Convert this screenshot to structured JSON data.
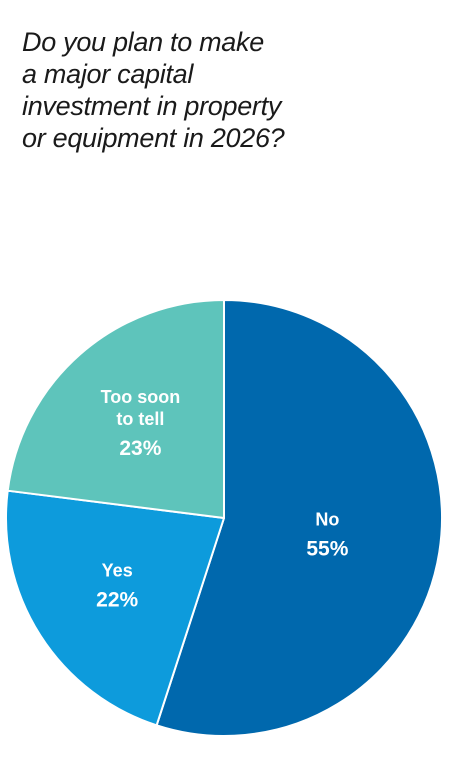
{
  "question": {
    "lines": [
      "Do you plan to make",
      "a major capital",
      "investment in property",
      "or equipment in 2026?"
    ]
  },
  "chart_data": {
    "type": "pie",
    "title": "Do you plan to make a major capital investment in property or equipment in 2026?",
    "slices": [
      {
        "label": "No",
        "value": 55,
        "display": "55%",
        "color": "#0068ad"
      },
      {
        "label": "Yes",
        "value": 22,
        "display": "22%",
        "color": "#0d9bdc"
      },
      {
        "label_lines": [
          "Too soon",
          "to tell"
        ],
        "label": "Too soon to tell",
        "value": 23,
        "display": "23%",
        "color": "#5ec4bb"
      }
    ],
    "start_angle": "12 o'clock",
    "direction": "clockwise",
    "slice_border_color": "#ffffff"
  }
}
